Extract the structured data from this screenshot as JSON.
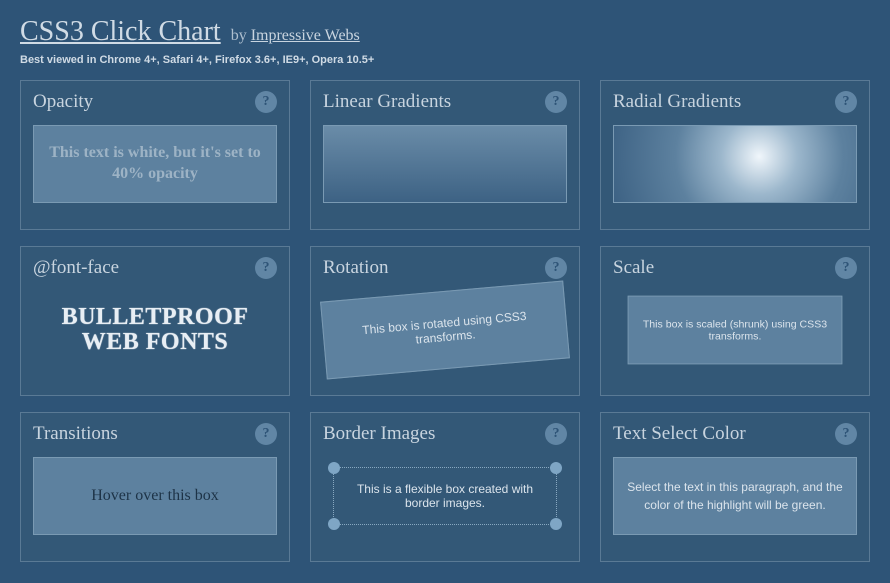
{
  "header": {
    "title": "CSS3 Click Chart",
    "byline_prefix": "by ",
    "byline_link": "Impressive Webs",
    "subtitle": "Best viewed in Chrome 4+, Safari 4+, Firefox 3.6+, IE9+, Opera 10.5+"
  },
  "help_glyph": "?",
  "colors": {
    "page_bg": "#2e5477",
    "card_bg": "#335877",
    "card_border": "#5a7a95",
    "demo_bg": "#5d819f",
    "demo_border": "#7a9ab3",
    "text_primary": "#c8d4df",
    "text_muted": "#aebfcf",
    "help_bg": "#6186a5",
    "dot_color": "#7fa6c5"
  },
  "cards": {
    "opacity": {
      "title": "Opacity",
      "demo_text": "This text is white, but it's set to 40% opacity"
    },
    "linear_gradients": {
      "title": "Linear Gradients",
      "gradient_from": "#6a8ca8",
      "gradient_to": "#3d6284"
    },
    "radial_gradients": {
      "title": "Radial Gradients",
      "center_color": "#f0f6fb",
      "mid_color": "#9cb7cc",
      "outer_color": "#3d6284"
    },
    "font_face": {
      "title": "@font-face",
      "demo_text": "Bulletproof Web Fonts"
    },
    "rotation": {
      "title": "Rotation",
      "demo_text": "This box is rotated using CSS3 transforms.",
      "angle_deg": -5
    },
    "scale": {
      "title": "Scale",
      "demo_text": "This box is scaled (shrunk) using CSS3 transforms.",
      "scale_factor": 0.88
    },
    "transitions": {
      "title": "Transitions",
      "demo_text": "Hover over this box"
    },
    "border_images": {
      "title": "Border Images",
      "demo_text": "This is a flexible box created with border images."
    },
    "text_select": {
      "title": "Text Select Color",
      "demo_text": "Select the text in this paragraph, and the color of the highlight will be green."
    }
  }
}
